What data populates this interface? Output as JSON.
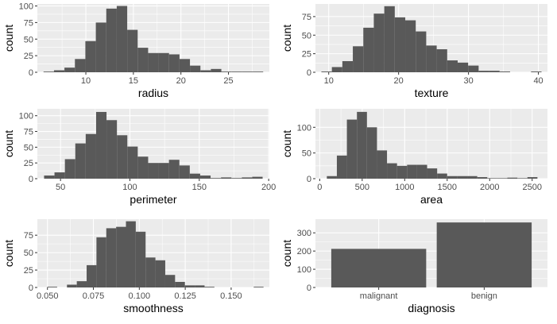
{
  "chart_data": [
    {
      "type": "bar",
      "xlabel": "radius",
      "ylabel": "count",
      "bin_width": 1.1,
      "x": [
        6.1,
        7.2,
        8.3,
        9.4,
        10.5,
        11.6,
        12.7,
        13.8,
        14.9,
        16.0,
        17.1,
        18.2,
        19.3,
        20.4,
        21.5,
        22.6,
        23.7,
        24.8,
        25.9,
        27.0,
        28.1
      ],
      "values": [
        1,
        3,
        7,
        20,
        47,
        75,
        96,
        100,
        64,
        37,
        29,
        29,
        27,
        20,
        10,
        3,
        5,
        1,
        1,
        1,
        1
      ],
      "xlim": [
        4.9,
        29.3
      ],
      "ylim": [
        0,
        103
      ],
      "xticks": [
        10,
        15,
        20,
        25
      ],
      "xtick_labels": [
        "10",
        "15",
        "20",
        "25"
      ],
      "yticks": [
        0,
        25,
        50,
        75,
        100
      ],
      "ytick_labels": [
        "0",
        "25",
        "50",
        "75",
        "100"
      ]
    },
    {
      "type": "bar",
      "xlabel": "texture",
      "ylabel": "count",
      "bin_width": 1.5,
      "x": [
        9.7,
        11.2,
        12.7,
        14.2,
        15.7,
        17.2,
        18.7,
        20.2,
        21.7,
        23.2,
        24.7,
        26.2,
        27.7,
        29.2,
        30.7,
        32.2,
        33.7,
        35.2,
        36.7,
        38.2,
        39.7
      ],
      "values": [
        1,
        7,
        15,
        35,
        60,
        79,
        89,
        74,
        70,
        55,
        36,
        31,
        16,
        13,
        9,
        2,
        2,
        1,
        0,
        0,
        1
      ],
      "xlim": [
        8.1,
        41.3
      ],
      "ylim": [
        0,
        92
      ],
      "xticks": [
        10,
        20,
        30,
        40
      ],
      "xtick_labels": [
        "10",
        "20",
        "30",
        "40"
      ],
      "yticks": [
        0,
        25,
        50,
        75
      ],
      "ytick_labels": [
        "0",
        "25",
        "50",
        "75"
      ]
    },
    {
      "type": "bar",
      "xlabel": "perimeter",
      "ylabel": "count",
      "bin_width": 7.5,
      "x": [
        41.9,
        49.4,
        56.9,
        64.4,
        71.9,
        79.4,
        86.9,
        94.4,
        101.9,
        109.4,
        116.9,
        124.4,
        131.9,
        139.4,
        146.9,
        154.4,
        161.9,
        169.4,
        176.9,
        184.4,
        191.9
      ],
      "values": [
        5,
        10,
        31,
        56,
        71,
        106,
        93,
        69,
        51,
        35,
        25,
        25,
        30,
        21,
        8,
        5,
        1,
        2,
        1,
        2,
        3
      ],
      "xlim": [
        33.3,
        200.5
      ],
      "ylim": [
        0,
        111
      ],
      "xticks": [
        50,
        100,
        150,
        200
      ],
      "xtick_labels": [
        "50",
        "100",
        "150",
        "200"
      ],
      "yticks": [
        0,
        25,
        50,
        75,
        100
      ],
      "ytick_labels": [
        "0",
        "25",
        "50",
        "75",
        "100"
      ]
    },
    {
      "type": "bar",
      "xlabel": "area",
      "ylabel": "count",
      "bin_width": 118,
      "x": [
        143,
        261,
        379,
        497,
        615,
        733,
        851,
        969,
        1087,
        1205,
        1323,
        1441,
        1559,
        1677,
        1795,
        1913,
        2031,
        2149,
        2267,
        2385,
        2503
      ],
      "values": [
        5,
        45,
        115,
        130,
        100,
        55,
        30,
        25,
        27,
        27,
        20,
        10,
        5,
        5,
        5,
        3,
        1,
        1,
        2,
        1,
        3
      ],
      "xlim": [
        -50,
        2680
      ],
      "ylim": [
        0,
        136
      ],
      "xticks": [
        0,
        500,
        1000,
        1500,
        2000,
        2500
      ],
      "xtick_labels": [
        "0",
        "500",
        "1000",
        "1500",
        "2000",
        "2500"
      ],
      "yticks": [
        0,
        50,
        100
      ],
      "ytick_labels": [
        "0",
        "50",
        "100"
      ]
    },
    {
      "type": "bar",
      "xlabel": "smoothness",
      "ylabel": "count",
      "bin_width": 0.00535,
      "x": [
        0.0526,
        0.05795,
        0.0633,
        0.06865,
        0.074,
        0.07935,
        0.0847,
        0.09005,
        0.0954,
        0.10075,
        0.1061,
        0.11145,
        0.1168,
        0.12215,
        0.1275,
        0.13285,
        0.1382,
        0.14355,
        0.1489,
        0.15425,
        0.1596,
        0.16495
      ],
      "values": [
        1,
        0,
        4,
        9,
        32,
        72,
        85,
        87,
        95,
        80,
        43,
        39,
        18,
        8,
        3,
        3,
        1,
        0,
        0,
        0,
        0,
        1
      ],
      "xlim": [
        0.0445,
        0.1708
      ],
      "ylim": [
        0,
        98
      ],
      "xticks": [
        0.05,
        0.075,
        0.1,
        0.125,
        0.15
      ],
      "xtick_labels": [
        "0.050",
        "0.075",
        "0.100",
        "0.125",
        "0.150"
      ],
      "yticks": [
        0,
        25,
        50,
        75
      ],
      "ytick_labels": [
        "0",
        "25",
        "50",
        "75"
      ]
    },
    {
      "type": "bar",
      "xlabel": "diagnosis",
      "ylabel": "count",
      "categories": [
        "malignant",
        "benign"
      ],
      "values": [
        212,
        357
      ],
      "ylim": [
        0,
        375
      ],
      "yticks": [
        0,
        100,
        200,
        300
      ],
      "ytick_labels": [
        "0",
        "100",
        "200",
        "300"
      ]
    }
  ]
}
